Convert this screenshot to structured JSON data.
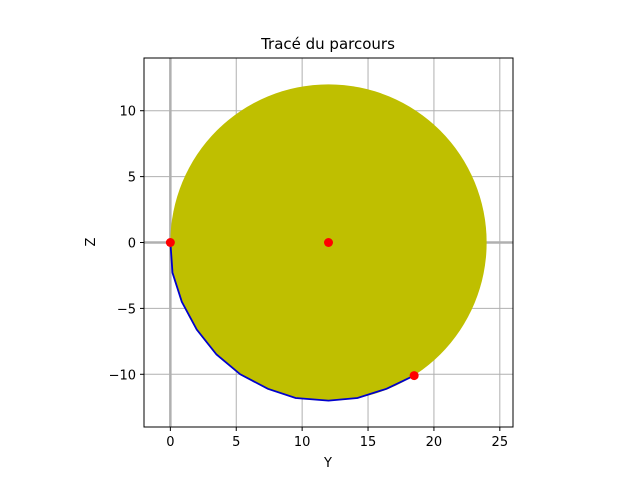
{
  "chart_data": {
    "type": "line",
    "title": "Tracé du parcours",
    "xlabel": "Y",
    "ylabel": "Z",
    "xlim": [
      -2,
      26
    ],
    "ylim": [
      -14,
      14
    ],
    "xticks": [
      0,
      5,
      10,
      15,
      20,
      25
    ],
    "xtick_labels": [
      "0",
      "5",
      "10",
      "15",
      "20",
      "25"
    ],
    "yticks": [
      -10,
      -5,
      0,
      5,
      10
    ],
    "ytick_labels": [
      "−10",
      "−5",
      "0",
      "5",
      "10"
    ],
    "grid": true,
    "axis_lines": {
      "x0": 0,
      "y0": 0,
      "color": "#b0b0b0"
    },
    "circle": {
      "center": [
        12,
        0
      ],
      "radius": 12,
      "color": "#bfbf00"
    },
    "path": {
      "color": "#0000cc",
      "x": [
        0,
        0.16,
        0.87,
        2.0,
        3.5,
        5.3,
        7.4,
        9.5,
        12.0,
        14.2,
        16.4,
        18.5
      ],
      "y": [
        0,
        -2.3,
        -4.5,
        -6.6,
        -8.5,
        -10.0,
        -11.1,
        -11.8,
        -12.0,
        -11.8,
        -11.1,
        -10.1
      ]
    },
    "points": {
      "color": "#ff0000",
      "x": [
        0,
        12,
        18.5
      ],
      "y": [
        0,
        0,
        -10.1
      ]
    }
  }
}
